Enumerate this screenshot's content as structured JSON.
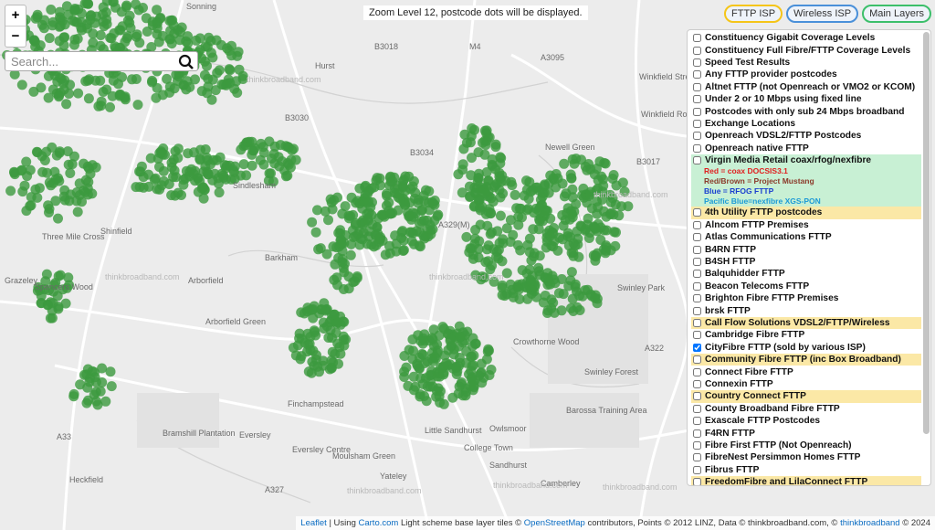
{
  "controls": {
    "zoom_in": "+",
    "zoom_out": "−",
    "search_placeholder": "Search..."
  },
  "notice": "Zoom Level 12, postcode dots will be displayed.",
  "tabs": [
    {
      "label": "FTTP ISP",
      "color": "#f5c518"
    },
    {
      "label": "Wireless ISP",
      "color": "#4a90d9"
    },
    {
      "label": "Main Layers",
      "color": "#3cbf6a"
    }
  ],
  "layers": [
    {
      "label": "Constituency Gigabit Coverage Levels",
      "checked": false
    },
    {
      "label": "Constituency Full Fibre/FTTP Coverage Levels",
      "checked": false
    },
    {
      "label": "Speed Test Results",
      "checked": false
    },
    {
      "label": "Any FTTP provider postcodes",
      "checked": false
    },
    {
      "label": "Altnet FTTP (not Openreach or VMO2 or KCOM)",
      "checked": false
    },
    {
      "label": "Under 2 or 10 Mbps using fixed line",
      "checked": false
    },
    {
      "label": "Postcodes with only sub 24 Mbps broadband",
      "checked": false
    },
    {
      "label": "Exchange Locations",
      "checked": false
    },
    {
      "label": "Openreach VDSL2/FTTP Postcodes",
      "checked": false
    },
    {
      "label": "Openreach native FTTP",
      "checked": false
    },
    {
      "label": "Virgin Media Retail coax/rfog/nexfibre",
      "checked": false,
      "highlight": "#c8f0d4",
      "legend": [
        {
          "text": "Red = coax DOCSIS3.1",
          "color": "#e02020"
        },
        {
          "text": "Red/Brown = Project Mustang",
          "color": "#8b3a2a"
        },
        {
          "text": "Blue = RFOG FTTP",
          "color": "#1a3fd0"
        },
        {
          "text": "Pacific Blue=nexfibre XGS-PON",
          "color": "#1c9ad6"
        }
      ]
    },
    {
      "label": "4th Utility FTTP postcodes",
      "checked": false,
      "highlight": "#fbe8a6"
    },
    {
      "label": "Alncom FTTP Premises",
      "checked": false
    },
    {
      "label": "Atlas Communications FTTP",
      "checked": false
    },
    {
      "label": "B4RN FTTP",
      "checked": false
    },
    {
      "label": "B4SH FTTP",
      "checked": false
    },
    {
      "label": "Balquhidder FTTP",
      "checked": false
    },
    {
      "label": "Beacon Telecoms FTTP",
      "checked": false
    },
    {
      "label": "Brighton Fibre FTTP Premises",
      "checked": false
    },
    {
      "label": "brsk FTTP",
      "checked": false
    },
    {
      "label": "Call Flow Solutions VDSL2/FTTP/Wireless",
      "checked": false,
      "highlight": "#fbe8a6"
    },
    {
      "label": "Cambridge Fibre FTTP",
      "checked": false
    },
    {
      "label": "CityFibre FTTP (sold by various ISP)",
      "checked": true
    },
    {
      "label": "Community Fibre FTTP (inc Box Broadband)",
      "checked": false,
      "highlight": "#fbe8a6"
    },
    {
      "label": "Connect Fibre FTTP",
      "checked": false
    },
    {
      "label": "Connexin FTTP",
      "checked": false
    },
    {
      "label": "Country Connect FTTP",
      "checked": false,
      "highlight": "#fbe8a6"
    },
    {
      "label": "County Broadband Fibre FTTP",
      "checked": false
    },
    {
      "label": "Exascale FTTP Postcodes",
      "checked": false
    },
    {
      "label": "F4RN FTTP",
      "checked": false
    },
    {
      "label": "Fibre First FTTP (Not Openreach)",
      "checked": false
    },
    {
      "label": "FibreNest Persimmon Homes FTTP",
      "checked": false
    },
    {
      "label": "Fibrus FTTP",
      "checked": false
    },
    {
      "label": "FreedomFibre and LilaConnect FTTP",
      "checked": false,
      "highlight": "#fbe8a6"
    }
  ],
  "map_labels": [
    "Sonning",
    "B3018",
    "M4",
    "A3095",
    "Hurst",
    "Winkfield Street",
    "Winkfield Row",
    "B3030",
    "B3034",
    "B3017",
    "Newell Green",
    "Sindlesham",
    "A329(M)",
    "Three Mile Cross",
    "Shinfield",
    "Barkham",
    "Arborfield",
    "Spencers Wood",
    "Grazeley",
    "Arborfield Green",
    "Swinley Park",
    "Crowthorne Wood",
    "Swinley Forest",
    "A322",
    "Finchampstead",
    "Bramshill Plantation",
    "Barossa Training Area",
    "Little Sandhurst",
    "Owlsmoor",
    "Eversley",
    "Eversley Centre",
    "College Town",
    "Moulsham Green",
    "A33",
    "Sandhurst",
    "Yateley",
    "Camberley",
    "Heckfield",
    "A327"
  ],
  "watermark": "thinkbroadband.com",
  "attribution": [
    {
      "text": "Leaflet",
      "link": true
    },
    {
      "text": " | Using ",
      "link": false
    },
    {
      "text": "Carto.com",
      "link": true
    },
    {
      "text": " Light scheme base layer tiles © ",
      "link": false
    },
    {
      "text": "OpenStreetMap",
      "link": true
    },
    {
      "text": " contributors, Points © 2012 LINZ, Data © thinkbroadband.com, © ",
      "link": false
    },
    {
      "text": "thinkbroadband",
      "link": true
    },
    {
      "text": " © 2024",
      "link": false
    }
  ]
}
